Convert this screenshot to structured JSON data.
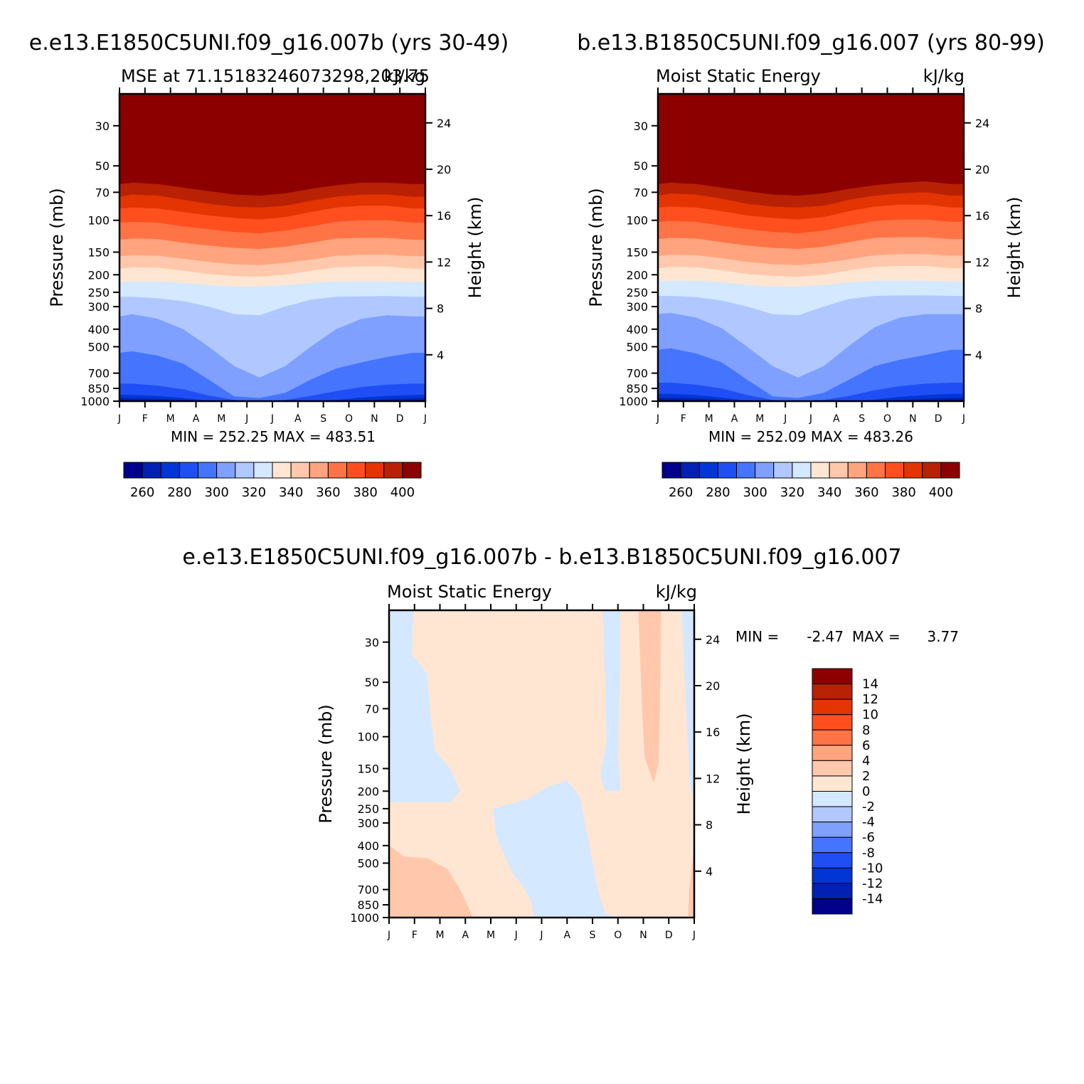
{
  "figure": {
    "panel1_heading": "e.e13.E1850C5UNI.f09_g16.007b (yrs 30-49)",
    "panel2_heading": "b.e13.B1850C5UNI.f09_g16.007 (yrs 80-99)",
    "diff_heading": "e.e13.E1850C5UNI.f09_g16.007b - b.e13.B1850C5UNI.f09_g16.007"
  },
  "colors": {
    "abs_palette": [
      "#00008c",
      "#0021b3",
      "#0036d6",
      "#1f4ff4",
      "#4575ff",
      "#7fa0ff",
      "#b0c8ff",
      "#d4e8ff",
      "#ffe6d3",
      "#ffc8ac",
      "#ffa47e",
      "#ff7446",
      "#ff4f1f",
      "#e33402",
      "#b92104",
      "#8c0000"
    ],
    "diff_palette": [
      "#00008c",
      "#0021b3",
      "#0036d6",
      "#1f4ff4",
      "#4575ff",
      "#7fa0ff",
      "#b0c8ff",
      "#d4e8ff",
      "#ffe6d3",
      "#ffc8ac",
      "#ffa47e",
      "#ff7446",
      "#ff4f1f",
      "#e33402",
      "#b92104",
      "#8c0000"
    ]
  },
  "chart_data": [
    {
      "type": "heatmap",
      "title": "MSE at 71.15183246073298,203.75",
      "units": "kJ/kg",
      "xlabel": "",
      "ylabel": "Pressure (mb)",
      "ylabel_right": "Height (km)",
      "x_ticklabels": [
        "J",
        "F",
        "M",
        "A",
        "M",
        "J",
        "J",
        "A",
        "S",
        "O",
        "N",
        "D",
        "J"
      ],
      "y_ticks": [
        30,
        50,
        70,
        100,
        150,
        200,
        250,
        300,
        400,
        500,
        700,
        850,
        1000
      ],
      "y_tick_labels": [
        "30",
        "50",
        "70",
        "100",
        "150",
        "200",
        "250",
        "300",
        "400",
        "500",
        "700",
        "850",
        "1000"
      ],
      "ylim": [
        1000,
        20
      ],
      "height_ticks": [
        4,
        8,
        12,
        16,
        20,
        24
      ],
      "height_tick_labels": [
        "4",
        "8",
        "12",
        "16",
        "20",
        "24"
      ],
      "stats_text": "MIN = 252.25 MAX = 483.51",
      "min": 252.25,
      "max": 483.51,
      "contour_levels": [
        260,
        270,
        280,
        290,
        300,
        310,
        320,
        330,
        340,
        350,
        360,
        370,
        380,
        390,
        400
      ],
      "colorbar_labels": [
        "260",
        "280",
        "300",
        "320",
        "340",
        "360",
        "380",
        "400"
      ],
      "boundaries": {
        "levels": [
          260,
          270,
          280,
          290,
          300,
          310,
          320,
          330,
          340,
          350,
          360,
          370,
          380,
          390,
          400
        ],
        "pressure_profiles_mb": [
          [
            985,
            990,
            995,
            1005,
            1008,
            1008,
            1008,
            1008,
            1008,
            1008,
            1005,
            995,
            990,
            985
          ],
          [
            960,
            965,
            970,
            985,
            1000,
            1008,
            1008,
            1008,
            1008,
            1008,
            990,
            975,
            965,
            960
          ],
          [
            920,
            925,
            935,
            960,
            995,
            1008,
            1008,
            1008,
            1008,
            985,
            955,
            935,
            925,
            920
          ],
          [
            800,
            800,
            820,
            860,
            930,
            985,
            1000,
            985,
            935,
            880,
            835,
            810,
            800,
            800
          ],
          [
            540,
            530,
            560,
            620,
            760,
            940,
            960,
            900,
            760,
            660,
            610,
            570,
            540,
            540
          ],
          [
            340,
            330,
            350,
            400,
            500,
            640,
            740,
            640,
            500,
            400,
            350,
            335,
            340,
            340
          ],
          [
            265,
            265,
            270,
            280,
            300,
            330,
            335,
            300,
            275,
            265,
            263,
            262,
            265,
            265
          ],
          [
            220,
            218,
            218,
            222,
            228,
            232,
            232,
            228,
            222,
            218,
            218,
            218,
            220,
            220
          ],
          [
            185,
            182,
            183,
            190,
            198,
            203,
            205,
            200,
            190,
            182,
            180,
            180,
            185,
            185
          ],
          [
            158,
            156,
            157,
            163,
            170,
            175,
            177,
            172,
            165,
            157,
            155,
            155,
            158,
            158
          ],
          [
            128,
            126,
            127,
            133,
            138,
            142,
            144,
            140,
            133,
            126,
            125,
            125,
            128,
            128
          ],
          [
            103,
            102,
            103,
            108,
            112,
            116,
            118,
            114,
            108,
            102,
            100,
            100,
            103,
            103
          ],
          [
            86,
            85,
            86,
            90,
            94,
            97,
            99,
            96,
            90,
            85,
            83,
            83,
            86,
            86
          ],
          [
            74,
            72,
            73,
            77,
            81,
            84,
            85,
            83,
            78,
            74,
            72,
            72,
            74,
            74
          ],
          [
            63,
            62,
            63,
            66,
            69,
            72,
            73,
            71,
            67,
            64,
            62,
            62,
            63,
            63
          ]
        ]
      }
    },
    {
      "type": "heatmap",
      "title": "Moist Static Energy",
      "units": "kJ/kg",
      "xlabel": "",
      "ylabel": "Pressure (mb)",
      "ylabel_right": "Height (km)",
      "x_ticklabels": [
        "J",
        "F",
        "M",
        "A",
        "M",
        "J",
        "J",
        "A",
        "S",
        "O",
        "N",
        "D",
        "J"
      ],
      "y_ticks": [
        30,
        50,
        70,
        100,
        150,
        200,
        250,
        300,
        400,
        500,
        700,
        850,
        1000
      ],
      "y_tick_labels": [
        "30",
        "50",
        "70",
        "100",
        "150",
        "200",
        "250",
        "300",
        "400",
        "500",
        "700",
        "850",
        "1000"
      ],
      "ylim": [
        1000,
        20
      ],
      "height_ticks": [
        4,
        8,
        12,
        16,
        20,
        24
      ],
      "height_tick_labels": [
        "4",
        "8",
        "12",
        "16",
        "20",
        "24"
      ],
      "stats_text": "MIN = 252.09 MAX = 483.26",
      "min": 252.09,
      "max": 483.26,
      "contour_levels": [
        260,
        270,
        280,
        290,
        300,
        310,
        320,
        330,
        340,
        350,
        360,
        370,
        380,
        390,
        400
      ],
      "colorbar_labels": [
        "260",
        "280",
        "300",
        "320",
        "340",
        "360",
        "380",
        "400"
      ],
      "boundaries": {
        "levels": [
          260,
          270,
          280,
          290,
          300,
          310,
          320,
          330,
          340,
          350,
          360,
          370,
          380,
          390,
          400
        ],
        "pressure_profiles_mb": [
          [
            980,
            985,
            990,
            1000,
            1008,
            1008,
            1008,
            1008,
            1008,
            1008,
            1002,
            990,
            985,
            980
          ],
          [
            955,
            958,
            965,
            985,
            1000,
            1008,
            1008,
            1008,
            1008,
            1005,
            985,
            970,
            960,
            955
          ],
          [
            910,
            912,
            925,
            955,
            995,
            1008,
            1008,
            1008,
            1008,
            980,
            945,
            925,
            912,
            910
          ],
          [
            790,
            790,
            810,
            850,
            925,
            985,
            1000,
            985,
            935,
            870,
            825,
            800,
            790,
            790
          ],
          [
            520,
            510,
            545,
            610,
            760,
            940,
            960,
            900,
            760,
            640,
            590,
            555,
            520,
            520
          ],
          [
            330,
            325,
            345,
            395,
            500,
            640,
            740,
            640,
            495,
            390,
            345,
            330,
            330,
            330
          ],
          [
            262,
            262,
            266,
            278,
            300,
            330,
            335,
            300,
            272,
            262,
            260,
            260,
            262,
            262
          ],
          [
            218,
            216,
            216,
            220,
            228,
            232,
            232,
            228,
            220,
            216,
            216,
            216,
            218,
            218
          ],
          [
            184,
            181,
            182,
            189,
            198,
            203,
            205,
            200,
            189,
            181,
            179,
            179,
            184,
            184
          ],
          [
            157,
            155,
            156,
            162,
            170,
            175,
            177,
            172,
            164,
            156,
            154,
            154,
            157,
            157
          ],
          [
            127,
            125,
            126,
            132,
            138,
            142,
            144,
            140,
            132,
            125,
            124,
            124,
            127,
            127
          ],
          [
            102,
            101,
            102,
            107,
            112,
            116,
            118,
            114,
            107,
            101,
            99,
            99,
            102,
            102
          ],
          [
            85,
            84,
            85,
            89,
            94,
            97,
            99,
            96,
            89,
            84,
            82,
            82,
            85,
            85
          ],
          [
            73,
            71,
            72,
            76,
            81,
            84,
            85,
            83,
            77,
            73,
            71,
            70,
            73,
            73
          ],
          [
            63,
            62,
            63,
            66,
            69,
            72,
            73,
            71,
            67,
            64,
            62,
            61,
            63,
            63
          ]
        ]
      }
    },
    {
      "type": "heatmap",
      "title": "Moist Static Energy",
      "units": "kJ/kg",
      "xlabel": "",
      "ylabel": "Pressure (mb)",
      "ylabel_right": "Height (km)",
      "x_ticklabels": [
        "J",
        "F",
        "M",
        "A",
        "M",
        "J",
        "J",
        "A",
        "S",
        "O",
        "N",
        "D",
        "J"
      ],
      "y_ticks": [
        30,
        50,
        70,
        100,
        150,
        200,
        250,
        300,
        400,
        500,
        700,
        850,
        1000
      ],
      "y_tick_labels": [
        "30",
        "50",
        "70",
        "100",
        "150",
        "200",
        "250",
        "300",
        "400",
        "500",
        "700",
        "850",
        "1000"
      ],
      "ylim": [
        1000,
        20
      ],
      "height_ticks": [
        4,
        8,
        12,
        16,
        20,
        24
      ],
      "height_tick_labels": [
        "4",
        "8",
        "12",
        "16",
        "20",
        "24"
      ],
      "stats_min_label": "MIN =",
      "stats_min_value": "-2.47",
      "stats_max_label": "MAX =",
      "stats_max_value": "3.77",
      "min": -2.47,
      "max": 3.77,
      "contour_levels": [
        -14,
        -12,
        -10,
        -8,
        -6,
        -4,
        -2,
        0,
        2,
        4,
        6,
        8,
        10,
        12,
        14
      ],
      "colorbar_labels": [
        "14",
        "12",
        "10",
        "8",
        "6",
        "4",
        "2",
        "0",
        "-2",
        "-4",
        "-6",
        "-8",
        "-10",
        "-12",
        "-14"
      ],
      "regions": [
        {
          "level": "-2 to 0",
          "description": "negative region, left upper (Jan-Mar, 20-230 mb)",
          "points_month_mb": [
            [
              0.05,
              20
            ],
            [
              0.95,
              20
            ],
            [
              0.9,
              35
            ],
            [
              1.5,
              45
            ],
            [
              1.6,
              70
            ],
            [
              1.8,
              120
            ],
            [
              2.4,
              150
            ],
            [
              2.8,
              200
            ],
            [
              2.4,
              230
            ],
            [
              1.2,
              230
            ],
            [
              0,
              230
            ]
          ]
        },
        {
          "level": "-2 to 0",
          "description": "negative region, mid (Apr-Oct, 200-1000 mb)",
          "points_month_mb": [
            [
              4.1,
              250
            ],
            [
              5.5,
              220
            ],
            [
              6.2,
              190
            ],
            [
              7.0,
              175
            ],
            [
              7.5,
              215
            ],
            [
              7.8,
              350
            ],
            [
              8.2,
              700
            ],
            [
              8.5,
              950
            ],
            [
              9.0,
              1000
            ],
            [
              5.7,
              1000
            ],
            [
              5.6,
              820
            ],
            [
              5.4,
              720
            ],
            [
              4.8,
              550
            ],
            [
              4.2,
              350
            ]
          ]
        },
        {
          "level": "-2 to 0",
          "description": "negative region, upper (Sep-Oct, 20-200 mb)",
          "points_month_mb": [
            [
              8.4,
              20
            ],
            [
              9.1,
              20
            ],
            [
              9.05,
              60
            ],
            [
              9.0,
              130
            ],
            [
              9.1,
              200
            ],
            [
              8.5,
              200
            ],
            [
              8.3,
              160
            ],
            [
              8.55,
              110
            ],
            [
              8.5,
              50
            ]
          ]
        },
        {
          "level": "-2 to 0",
          "description": "negative region, right edge (Dec-Jan)",
          "points_month_mb": [
            [
              11.5,
              20
            ],
            [
              12.0,
              20
            ],
            [
              12.0,
              200
            ],
            [
              11.85,
              200
            ],
            [
              11.7,
              80
            ]
          ]
        },
        {
          "level": "2 to 4",
          "description": "positive region, lower left (Jan-Apr, 400-1000 mb)",
          "points_month_mb": [
            [
              0,
              400
            ],
            [
              0.6,
              460
            ],
            [
              1.5,
              470
            ],
            [
              2.3,
              540
            ],
            [
              2.8,
              700
            ],
            [
              3.3,
              1000
            ],
            [
              0,
              1000
            ]
          ]
        },
        {
          "level": "2 to 4",
          "description": "positive region, upper (Nov, 20-180 mb)",
          "points_month_mb": [
            [
              9.8,
              20
            ],
            [
              10.7,
              20
            ],
            [
              10.65,
              70
            ],
            [
              10.6,
              140
            ],
            [
              10.4,
              180
            ],
            [
              10.05,
              130
            ],
            [
              9.95,
              70
            ]
          ]
        },
        {
          "level": "2 to 4",
          "description": "positive region, lower right edge (Dec-Jan)",
          "points_month_mb": [
            [
              11.8,
              700
            ],
            [
              12.0,
              400
            ],
            [
              12.0,
              1000
            ],
            [
              11.75,
              1000
            ]
          ]
        }
      ]
    }
  ]
}
